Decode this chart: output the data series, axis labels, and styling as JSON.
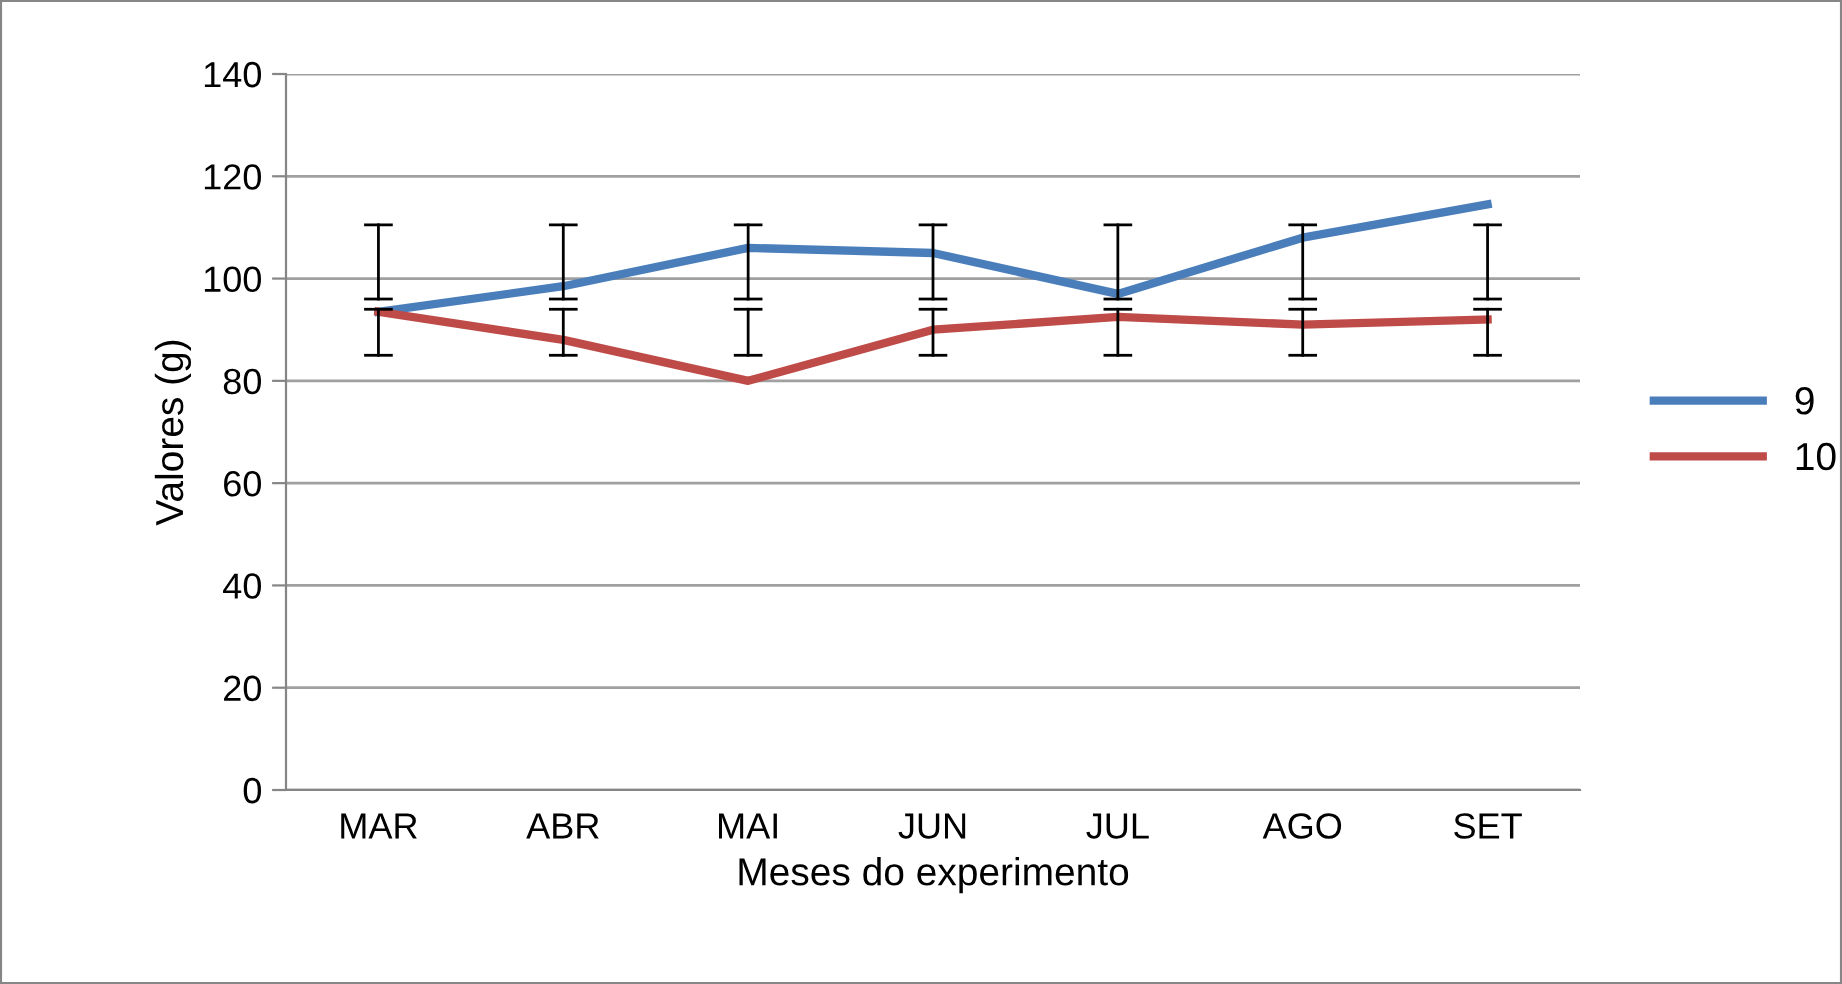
{
  "chart_data": {
    "type": "line",
    "xlabel": "Meses do experimento",
    "ylabel": "Valores (g)",
    "categories": [
      "MAR",
      "ABR",
      "MAI",
      "JUN",
      "JUL",
      "AGO",
      "SET"
    ],
    "series": [
      {
        "name": "9",
        "color": "#4a7ebb",
        "values": [
          93.5,
          98.5,
          106,
          105,
          97,
          108,
          114.5
        ],
        "errors": [
          [
            96,
            110.5
          ],
          [
            96,
            110.5
          ],
          [
            96,
            110.5
          ],
          [
            96,
            110.5
          ],
          [
            96,
            110.5
          ],
          [
            96,
            110.5
          ],
          [
            96,
            110.5
          ]
        ]
      },
      {
        "name": "10",
        "color": "#be4b48",
        "values": [
          93.5,
          88,
          80,
          90,
          92.5,
          91,
          92
        ],
        "errors": [
          [
            85,
            94
          ],
          [
            85,
            94
          ],
          [
            85,
            94
          ],
          [
            85,
            94
          ],
          [
            85,
            94
          ],
          [
            85,
            94
          ],
          [
            85,
            94
          ]
        ]
      }
    ],
    "ylim": [
      0,
      140
    ],
    "yticks": [
      0,
      20,
      40,
      60,
      80,
      100,
      120,
      140
    ],
    "grid": "y",
    "legend": "right",
    "marker": "none",
    "line_style": "solid"
  }
}
